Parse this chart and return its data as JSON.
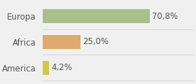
{
  "categories": [
    "Europa",
    "Africa",
    "America"
  ],
  "values": [
    70.8,
    25.0,
    4.2
  ],
  "labels": [
    "70,8%",
    "25,0%",
    "4,2%"
  ],
  "bar_colors": [
    "#a8c08a",
    "#e0a96d",
    "#d4c84a"
  ],
  "background_color": "#f0f0f0",
  "xlim": [
    0,
    100
  ],
  "bar_height": 0.55,
  "label_fontsize": 8.5,
  "tick_fontsize": 8.5
}
